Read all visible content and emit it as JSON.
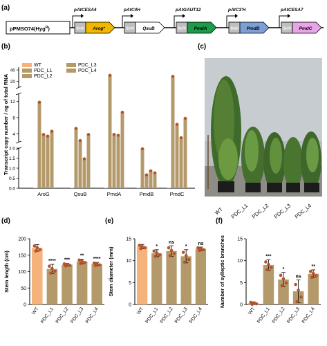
{
  "colors": {
    "wt": "#f5b27a",
    "pdc": "#b49a6b",
    "dot": "#b5522a",
    "arog": "#f2b800",
    "qsub": "#ffffff",
    "pmda": "#1f9a4a",
    "pmdb": "#7e9fd6",
    "pmdc": "#e7a4e8",
    "schl": "#bfbfbf"
  },
  "panel_a": {
    "label": "(a)",
    "vector": "pPMSO74(Hyg",
    "vector_sup": "R",
    "vector_tail": ")",
    "constructs": [
      {
        "promoter": "pAtCESA4",
        "tag": "Schl",
        "gene": "Arog*",
        "color": "arog"
      },
      {
        "promoter": "pAtC4H",
        "tag": "Schl",
        "gene": "QsuB",
        "color": "qsub"
      },
      {
        "promoter": "pAtGAUT12",
        "tag": "Schl",
        "gene": "PmdA",
        "color": "pmda"
      },
      {
        "promoter": "pAtC3'H",
        "tag": "Schl",
        "gene": "PmdB",
        "color": "pmdb"
      },
      {
        "promoter": "pAtCESA7",
        "tag": "Schl",
        "gene": "PmdC",
        "color": "pmdc"
      }
    ]
  },
  "panel_b": {
    "label": "(b)",
    "ylabel": "Transcript copy number / ng of total RNA",
    "legend": [
      "WT",
      "PDC_L1",
      "PDC_L2",
      "PDC_L3",
      "PDC_L4"
    ],
    "yticks_top": [
      "20",
      "40"
    ],
    "yticks_mid": [
      "4",
      "8",
      "12"
    ],
    "yticks_bot": [
      "0.0",
      "0.5",
      "1.0",
      "1.5",
      "2.0"
    ],
    "genes": [
      "AroG",
      "QsuB",
      "PmdA",
      "PmdB",
      "PmdC"
    ]
  },
  "panel_c": {
    "label": "(c)",
    "plants": [
      "WT",
      "PDC_L1",
      "PDC_L2",
      "PDC_L3",
      "PDC_L4"
    ]
  },
  "chart_data": [
    {
      "type": "bar",
      "panel": "(d)",
      "ylabel": "Stem length (cm)",
      "ylim": [
        0,
        200
      ],
      "yticks": [
        "0",
        "50",
        "100",
        "150",
        "200"
      ],
      "categories": [
        "WT",
        "PDC_L1",
        "PDC_L2",
        "PDC_L3",
        "PDC_L4"
      ],
      "values": [
        172,
        108,
        121,
        131,
        123
      ],
      "errors": [
        10,
        14,
        4,
        7,
        5
      ],
      "significance": [
        "",
        "****",
        "***",
        "**",
        "****"
      ]
    },
    {
      "type": "bar",
      "panel": "(e)",
      "ylabel": "Stem diameter (mm)",
      "ylim": [
        0,
        15
      ],
      "yticks": [
        "0",
        "5",
        "10",
        "15"
      ],
      "categories": [
        "WT",
        "PDC_L1",
        "PDC_L2",
        "PDC_L3",
        "PDC_L4"
      ],
      "values": [
        13.2,
        11.7,
        12.2,
        11.0,
        12.7
      ],
      "errors": [
        0.5,
        0.8,
        1.2,
        1.5,
        0.4
      ],
      "significance": [
        "",
        "*",
        "ns",
        "*",
        "ns"
      ]
    },
    {
      "type": "bar",
      "panel": "(f)",
      "ylabel": "Number of sylleptic branches",
      "ylim": [
        0,
        15
      ],
      "yticks": [
        "0",
        "5",
        "10",
        "15"
      ],
      "categories": [
        "WT",
        "PDC_L1",
        "PDC_L2",
        "PDC_L3",
        "PDC_L4"
      ],
      "values": [
        0.3,
        9.0,
        5.7,
        3.0,
        7.0
      ],
      "errors": [
        0.3,
        1.2,
        1.6,
        2.6,
        0.9
      ],
      "significance": [
        "",
        "***",
        "*",
        "ns",
        "**"
      ]
    }
  ]
}
